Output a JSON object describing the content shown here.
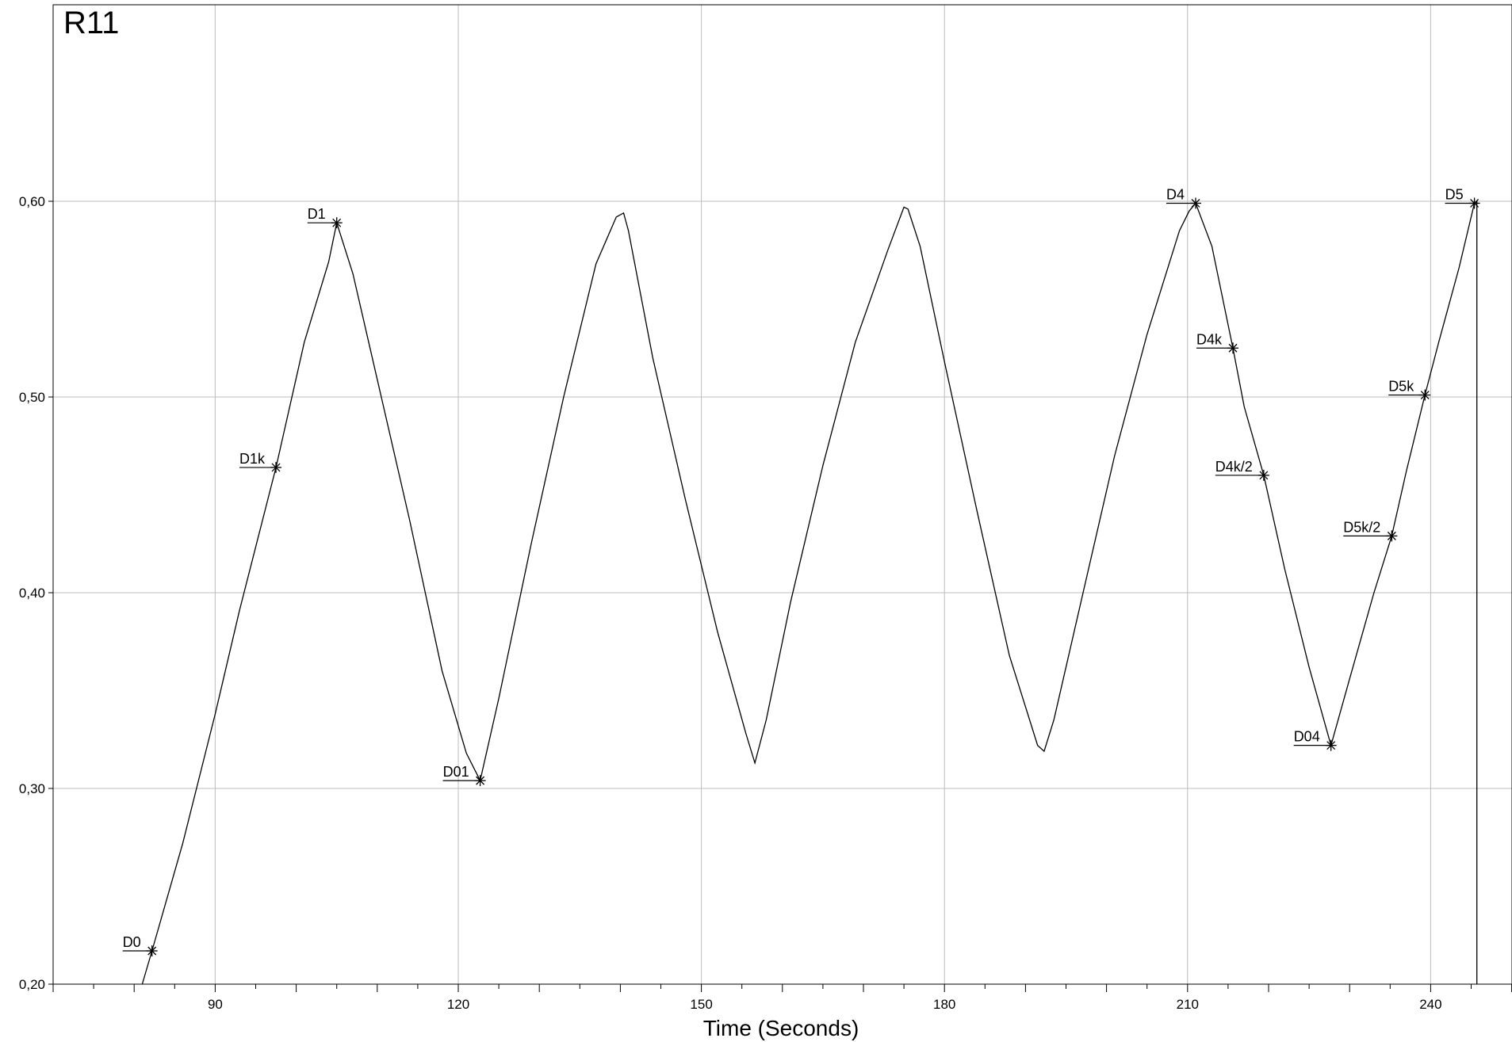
{
  "chart_data": {
    "type": "line",
    "title": "R11",
    "xlabel": "Time (Seconds)",
    "ylabel": "",
    "xlim": [
      70,
      250
    ],
    "ylim": [
      0.2,
      0.7
    ],
    "grid": true,
    "xticks": [
      {
        "value": 90,
        "label": "90"
      },
      {
        "value": 120,
        "label": "120"
      },
      {
        "value": 150,
        "label": "150"
      },
      {
        "value": 180,
        "label": "180"
      },
      {
        "value": 210,
        "label": "210"
      },
      {
        "value": 240,
        "label": "240"
      }
    ],
    "yticks": [
      {
        "value": 0.2,
        "label": "0,20"
      },
      {
        "value": 0.3,
        "label": "0,30"
      },
      {
        "value": 0.4,
        "label": "0,40"
      },
      {
        "value": 0.5,
        "label": "0,50"
      },
      {
        "value": 0.6,
        "label": "0,60"
      }
    ],
    "series": [
      {
        "x": [
          81.0,
          82.2,
          86,
          90,
          93,
          97.5,
          101,
          104,
          105.0,
          107,
          110,
          114,
          118,
          121,
          122.7,
          125,
          129,
          133,
          137,
          139.5,
          140.4,
          141,
          144,
          148,
          152,
          155.5,
          156.6,
          158,
          161,
          165,
          169,
          173,
          175.0,
          175.5,
          177,
          180,
          184,
          188,
          191.5,
          192.3,
          193.5,
          197,
          201,
          205,
          209,
          210.2,
          211.0,
          213,
          215.6,
          217,
          219.4,
          222,
          225,
          227.7,
          230,
          233,
          235.2,
          237,
          239.3,
          241,
          243.5,
          245.4,
          245.7,
          245.7
        ],
        "y": [
          0.2,
          0.217,
          0.272,
          0.338,
          0.391,
          0.464,
          0.528,
          0.569,
          0.589,
          0.563,
          0.509,
          0.437,
          0.36,
          0.318,
          0.304,
          0.346,
          0.425,
          0.5,
          0.568,
          0.592,
          0.594,
          0.585,
          0.52,
          0.448,
          0.38,
          0.328,
          0.313,
          0.335,
          0.395,
          0.465,
          0.528,
          0.575,
          0.597,
          0.596,
          0.577,
          0.518,
          0.442,
          0.368,
          0.322,
          0.319,
          0.335,
          0.398,
          0.47,
          0.532,
          0.585,
          0.595,
          0.599,
          0.577,
          0.525,
          0.495,
          0.46,
          0.412,
          0.362,
          0.322,
          0.356,
          0.4,
          0.429,
          0.462,
          0.501,
          0.528,
          0.566,
          0.599,
          0.6,
          0.2
        ]
      }
    ],
    "annotations": [
      {
        "label": "D0",
        "x": 82.2,
        "y": 0.217
      },
      {
        "label": "D1k",
        "x": 97.5,
        "y": 0.464
      },
      {
        "label": "D1",
        "x": 105.0,
        "y": 0.589
      },
      {
        "label": "D01",
        "x": 122.7,
        "y": 0.304
      },
      {
        "label": "D4",
        "x": 211.0,
        "y": 0.599
      },
      {
        "label": "D4k",
        "x": 215.6,
        "y": 0.525
      },
      {
        "label": "D4k/2",
        "x": 219.4,
        "y": 0.46
      },
      {
        "label": "D04",
        "x": 227.7,
        "y": 0.322
      },
      {
        "label": "D5k/2",
        "x": 235.2,
        "y": 0.429
      },
      {
        "label": "D5k",
        "x": 239.3,
        "y": 0.501
      },
      {
        "label": "D5",
        "x": 245.4,
        "y": 0.599
      }
    ]
  }
}
